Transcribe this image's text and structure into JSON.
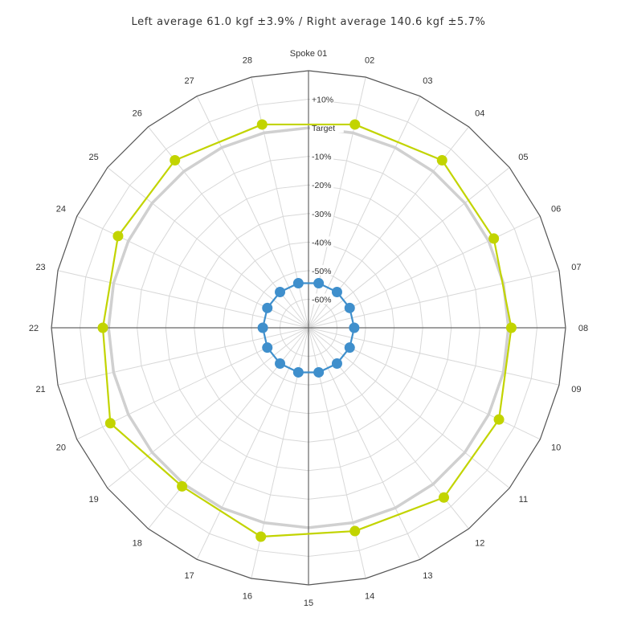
{
  "title": "Left average 61.0 kgf ±3.9% / Right average 140.6 kgf ±5.7%",
  "chart_data": {
    "type": "radar",
    "categories": [
      "Spoke 01",
      "02",
      "03",
      "04",
      "05",
      "06",
      "07",
      "08",
      "09",
      "10",
      "11",
      "12",
      "13",
      "14",
      "15",
      "16",
      "17",
      "18",
      "19",
      "20",
      "21",
      "22",
      "23",
      "24",
      "25",
      "26",
      "27",
      "28"
    ],
    "ring_labels": [
      "+10%",
      "Target",
      "-10%",
      "-20%",
      "-30%",
      "-40%",
      "-50%",
      "-60%"
    ],
    "ring_values": [
      10,
      0,
      -10,
      -20,
      -30,
      -40,
      -50,
      -60
    ],
    "rlim": [
      -70,
      20
    ],
    "colors": {
      "grid": "#d8d8d8",
      "outer": "#555555",
      "axis": "#666666",
      "target": "#d0d0d0",
      "left": "#3f8fcc",
      "right": "#c2d400"
    },
    "series": [
      {
        "role": "left",
        "values": [
          null,
          -54,
          null,
          -54,
          null,
          -54,
          null,
          -54,
          null,
          -54,
          null,
          -54,
          null,
          -54,
          null,
          -54,
          null,
          -54,
          null,
          -54,
          null,
          -54,
          null,
          -54,
          null,
          -54,
          null,
          -54
        ]
      },
      {
        "role": "right",
        "values": [
          null,
          3,
          null,
          5,
          null,
          2,
          null,
          1,
          null,
          4,
          null,
          6,
          null,
          3,
          null,
          5,
          null,
          1,
          null,
          7,
          null,
          2,
          null,
          4,
          null,
          5,
          null,
          3
        ]
      }
    ]
  }
}
